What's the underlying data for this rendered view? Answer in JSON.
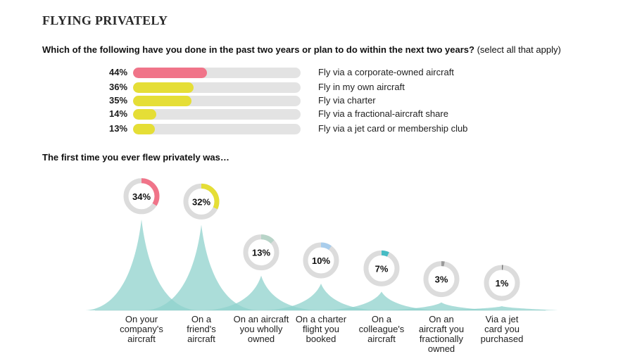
{
  "section_title": "FLYING PRIVATELY",
  "question1": {
    "text": "Which of the following have you done in the past two years or plan to do within the next two years?",
    "note": "(select all that apply)"
  },
  "question2": {
    "text": "The first time you ever flew privately was…"
  },
  "chart_data": [
    {
      "type": "bar",
      "orientation": "horizontal",
      "title": "Which of the following have you done in the past two years or plan to do within the next two years? (select all that apply)",
      "categories": [
        "Fly via a corporate-owned aircraft",
        "Fly in my own aircraft",
        "Fly via charter",
        "Fly via a fractional-aircraft share",
        "Fly via a jet card or membership club"
      ],
      "values": [
        44,
        36,
        35,
        14,
        13
      ],
      "value_labels": [
        "44%",
        "36%",
        "35%",
        "14%",
        "13%"
      ],
      "colors": [
        "#f07489",
        "#e5de36",
        "#e5de36",
        "#e5de36",
        "#e5de36"
      ],
      "track_color": "#e3e3e3",
      "xlim": [
        0,
        100
      ]
    },
    {
      "type": "area",
      "title": "The first time you ever flew privately was…",
      "categories": [
        "On your company's aircraft",
        "On a friend's aircraft",
        "On an aircraft you wholly owned",
        "On a charter flight you booked",
        "On a colleague's aircraft",
        "On an aircraft you fractionally owned",
        "Via a jet card you purchased"
      ],
      "category_lines": [
        [
          "On your",
          "company's",
          "aircraft"
        ],
        [
          "On a",
          "friend's",
          "aircraft"
        ],
        [
          "On an aircraft",
          "you wholly",
          "owned"
        ],
        [
          "On a charter",
          "flight you",
          "booked"
        ],
        [
          "On a",
          "colleague's",
          "aircraft"
        ],
        [
          "On an",
          "aircraft you",
          "fractionally",
          "owned"
        ],
        [
          "Via a jet",
          "card you",
          "purchased"
        ]
      ],
      "values": [
        34,
        32,
        13,
        10,
        7,
        3,
        1
      ],
      "value_labels": [
        "34%",
        "32%",
        "13%",
        "10%",
        "7%",
        "3%",
        "1%"
      ],
      "ring_colors": [
        "#f07489",
        "#e5de36",
        "#b8d4c8",
        "#a9cdec",
        "#47bcc4",
        "#9a9a9a",
        "#777777"
      ],
      "ring_track_color": "#dcdcdc",
      "peak_color": "#8fd2cc",
      "ylim": [
        0,
        40
      ]
    }
  ]
}
